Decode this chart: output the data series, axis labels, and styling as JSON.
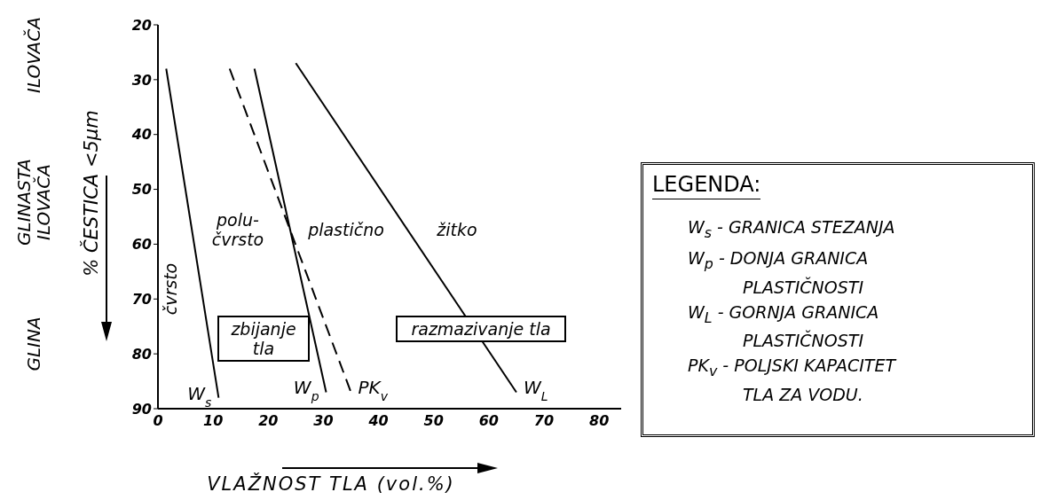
{
  "chart_data": {
    "type": "line",
    "xlabel": "VLAŽNOST TLA (vol.%)",
    "ylabel": "% ČESTICA <5μm",
    "legend_title": "LEGENDA:",
    "marker": "none",
    "xlim": [
      0,
      84
    ],
    "xticks": [
      0,
      10,
      20,
      30,
      40,
      50,
      60,
      70,
      80
    ],
    "ylim": [
      90,
      20
    ],
    "yticks": [
      20,
      30,
      40,
      50,
      60,
      70,
      80,
      90
    ],
    "series": [
      {
        "name": "W$_{s}$",
        "color": "#000000",
        "x": [
          1.5,
          11
        ],
        "values": [
          28,
          88
        ]
      },
      {
        "name": "W$_{p}$",
        "color": "#000000",
        "x": [
          17.5,
          30.5
        ],
        "values": [
          28,
          87
        ]
      },
      {
        "name": "PK$_{v}$",
        "color": "#000000",
        "line_style": "dashed",
        "x": [
          13,
          35
        ],
        "values": [
          28,
          87
        ]
      },
      {
        "name": "W$_{L}$",
        "color": "#000000",
        "x": [
          25,
          65
        ],
        "values": [
          27,
          87
        ]
      }
    ],
    "annotations": [
      "čvrsto",
      "polu-\nčvrsto",
      "plastično",
      "žitko",
      "zbijanje\ntla",
      "razmazivanje tla",
      "ILOVAČA",
      "GLINASTA\nILOVAČA",
      "GLINA",
      "W$_{s}$ - GRANICA STEZANJA",
      "W$_{p}$ - DONJA GRANICA\nPLASTIČNOSTI",
      "W$_{L}$ - GORNJA GRANICA\nPLASTIČNOSTI",
      "PK$_{v}$ - POLJSKI KAPACITET\nTLA ZA VODU."
    ]
  }
}
